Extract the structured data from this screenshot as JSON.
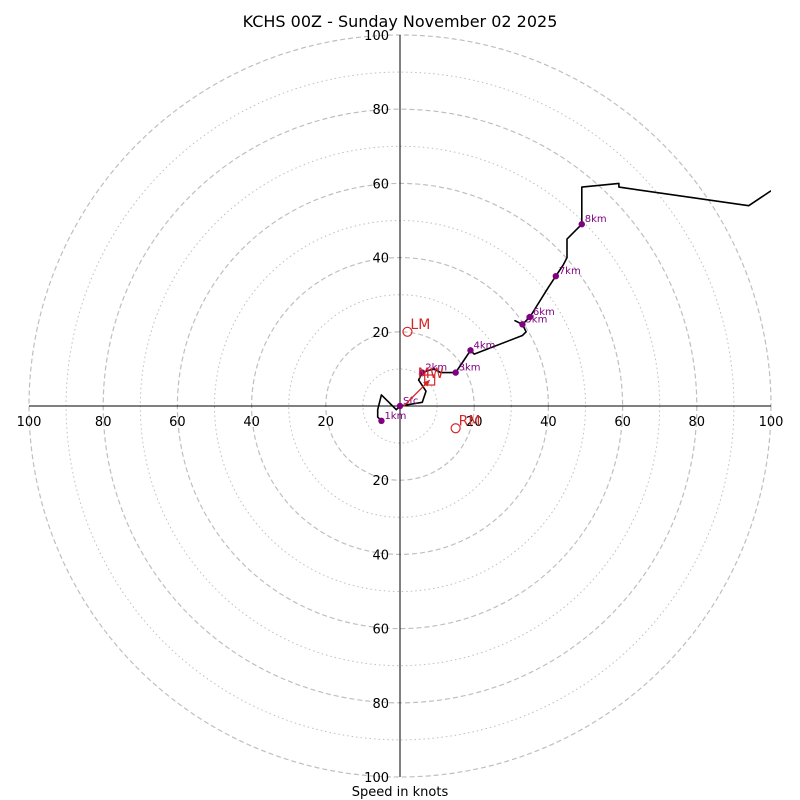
{
  "chart_data": {
    "type": "hodograph",
    "title": "KCHS 00Z - Sunday November 02 2025",
    "xlabel": "Speed in knots",
    "units": "knots",
    "xlim": [
      -100,
      100
    ],
    "ylim": [
      -100,
      100
    ],
    "rings_major": [
      20,
      40,
      60,
      80,
      100
    ],
    "rings_minor": [
      10,
      30,
      50,
      70,
      90
    ],
    "tick_labels": {
      "left": [
        "100",
        "80",
        "60",
        "40",
        "20"
      ],
      "right": [
        "20",
        "40",
        "60",
        "80",
        "100"
      ],
      "top": [
        "100",
        "80",
        "60",
        "40",
        "20"
      ],
      "bottom": [
        "20",
        "40",
        "60",
        "80",
        "100"
      ]
    },
    "trace": [
      [
        -5,
        -4
      ],
      [
        -6,
        -3
      ],
      [
        -6,
        -1
      ],
      [
        -5,
        3
      ],
      [
        -3,
        1
      ],
      [
        -1,
        -1
      ],
      [
        0,
        0
      ],
      [
        6,
        1
      ],
      [
        7,
        4
      ],
      [
        5,
        7
      ],
      [
        6,
        9
      ],
      [
        9,
        10
      ],
      [
        11,
        9
      ],
      [
        15,
        9
      ],
      [
        17,
        12
      ],
      [
        19,
        15
      ],
      [
        20,
        14
      ],
      [
        33,
        19
      ],
      [
        34,
        20
      ],
      [
        33,
        22
      ],
      [
        31,
        23
      ],
      [
        33,
        22
      ],
      [
        34,
        23
      ],
      [
        35,
        24
      ],
      [
        40,
        32
      ],
      [
        42,
        35
      ],
      [
        44,
        38
      ],
      [
        45,
        40
      ],
      [
        45,
        45
      ],
      [
        49,
        49
      ],
      [
        49,
        59
      ],
      [
        59,
        60
      ],
      [
        59,
        59
      ],
      [
        94,
        54
      ],
      [
        100,
        58
      ]
    ],
    "height_markers": [
      {
        "label": "Sfc",
        "u": 0,
        "v": 0
      },
      {
        "label": "1km",
        "u": -5,
        "v": -4
      },
      {
        "label": "2km",
        "u": 6,
        "v": 9
      },
      {
        "label": "3km",
        "u": 15,
        "v": 9
      },
      {
        "label": "4km",
        "u": 19,
        "v": 15
      },
      {
        "label": "5km",
        "u": 33,
        "v": 22
      },
      {
        "label": "6km",
        "u": 35,
        "v": 24
      },
      {
        "label": "7km",
        "u": 42,
        "v": 35
      },
      {
        "label": "8km",
        "u": 49,
        "v": 49
      }
    ],
    "motions": [
      {
        "label": "LM",
        "u": 2,
        "v": 20
      },
      {
        "label": "RM",
        "u": 15,
        "v": -6
      }
    ],
    "mean_wind": {
      "label": "MW",
      "u": 8,
      "v": 7
    },
    "shear_arrow": {
      "from": [
        1,
        0
      ],
      "to": [
        8,
        7
      ]
    },
    "colors": {
      "trace": "#000000",
      "height_markers": "#800080",
      "motions": "#d62728",
      "grid": "#bfbfbf",
      "axes": "#000000"
    }
  }
}
